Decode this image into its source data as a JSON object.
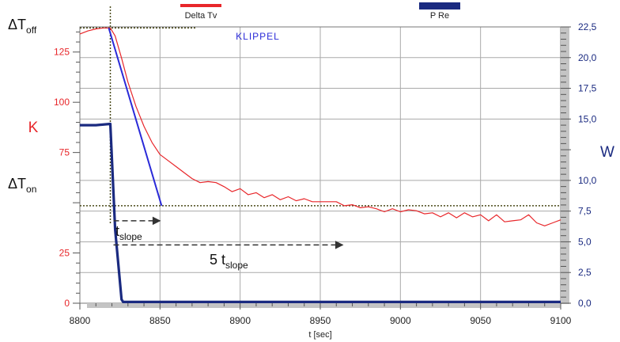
{
  "chart_data": {
    "type": "line",
    "watermark": "KLIPPEL",
    "legend": [
      {
        "label": "Delta Tv",
        "color": "#e8262a"
      },
      {
        "label": "P Re",
        "color": "#1a2a80"
      }
    ],
    "x_axis": {
      "label": "t [sec]",
      "range": [
        8800,
        9100
      ],
      "ticks": [
        "8800",
        "8850",
        "8900",
        "8950",
        "9000",
        "9050",
        "9100"
      ]
    },
    "y_left": {
      "label": "K",
      "color": "#e8262a",
      "range": [
        0,
        137.5
      ],
      "tick_values": [
        0,
        25,
        75,
        100,
        125
      ],
      "tick_labels": [
        "0",
        "25",
        "75",
        "100",
        "125"
      ]
    },
    "y_right": {
      "label": "W",
      "color": "#1a2a80",
      "range": [
        0,
        22.5
      ],
      "tick_values": [
        0,
        2.5,
        5,
        7.5,
        10,
        15,
        17.5,
        20,
        22.5
      ],
      "tick_labels": [
        "0,0",
        "2,5",
        "5,0",
        "7,5",
        "10,0",
        "15,0",
        "17,5",
        "20,0",
        "22,5"
      ]
    },
    "annotations": {
      "t_off": {
        "main": "ΔT",
        "sub": "off"
      },
      "t_on": {
        "main": "ΔT",
        "sub": "on"
      },
      "t_slope": {
        "main": "t",
        "sub": "slope"
      },
      "five_t_slope": {
        "main": "5 t",
        "sub": "slope"
      }
    },
    "series": [
      {
        "name": "Delta Tv",
        "axis": "left",
        "color": "#e8262a",
        "x": [
          8800,
          8805,
          8810,
          8815,
          8819,
          8822,
          8826,
          8830,
          8835,
          8840,
          8845,
          8850,
          8855,
          8860,
          8865,
          8870,
          8875,
          8880,
          8885,
          8890,
          8895,
          8900,
          8905,
          8910,
          8915,
          8920,
          8925,
          8930,
          8935,
          8940,
          8945,
          8950,
          8955,
          8960,
          8965,
          8970,
          8975,
          8980,
          8985,
          8990,
          8995,
          9000,
          9005,
          9010,
          9015,
          9020,
          9025,
          9030,
          9035,
          9040,
          9045,
          9050,
          9055,
          9060,
          9065,
          9070,
          9075,
          9080,
          9085,
          9090,
          9095,
          9100
        ],
        "y": [
          134,
          135.5,
          136.5,
          137,
          137,
          133,
          122,
          110,
          98,
          88,
          80,
          74,
          71,
          68,
          65,
          62,
          60,
          60.5,
          60,
          58,
          55.5,
          57,
          54,
          55,
          52.5,
          54,
          51.5,
          53,
          51,
          52,
          50.5,
          50.5,
          50.5,
          50.5,
          48.5,
          49,
          47.5,
          48,
          47,
          45.5,
          47,
          45.5,
          46.5,
          46,
          44.5,
          45,
          43,
          45,
          42.5,
          45,
          43,
          44,
          41,
          44,
          40.5,
          41,
          41.5,
          44,
          40,
          38.5,
          40,
          41.5
        ]
      },
      {
        "name": "P Re",
        "axis": "right",
        "color": "#1a2a80",
        "x": [
          8800,
          8810,
          8819,
          8822,
          8826,
          8827,
          8850,
          8900,
          8950,
          9000,
          9050,
          9100
        ],
        "y": [
          14.5,
          14.5,
          14.6,
          6.0,
          0.3,
          0.1,
          0.1,
          0.1,
          0.1,
          0.1,
          0.1,
          0.1
        ]
      }
    ],
    "slope_line": {
      "x": [
        8818,
        8851
      ],
      "y": [
        137,
        48.5
      ],
      "color": "#2a2ad8"
    },
    "reference_lines": {
      "t_off_level": 137,
      "t_on_level": 48.5,
      "t_off_time": 8819
    },
    "arrows": [
      {
        "x_start": 8819,
        "x_end": 8851,
        "y": 41
      },
      {
        "x_start": 8819,
        "x_end": 8965,
        "y": 29
      }
    ],
    "grid": true
  }
}
